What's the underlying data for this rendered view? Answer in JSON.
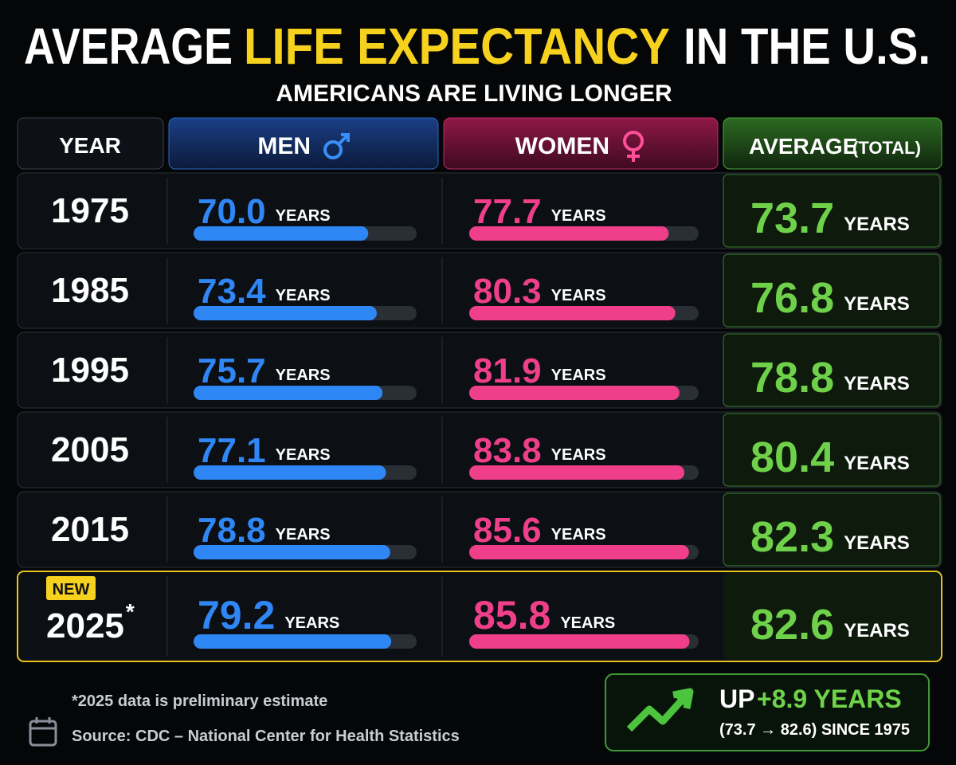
{
  "header": {
    "title_start": "AVERAGE",
    "title_highlight": "LIFE EXPECTANCY",
    "title_end": "IN THE U.S.",
    "subtitle": "AMERICANS ARE LIVING LONGER"
  },
  "table": {
    "columns": {
      "year": "YEAR",
      "men": "MEN",
      "women": "WOMEN",
      "average": "AVERAGE",
      "average_note": "(TOTAL)"
    },
    "unit": "YEARS",
    "years": [
      "1975",
      "1985",
      "1995",
      "2005",
      "2015",
      "2025"
    ],
    "latest_badge": "NEW",
    "latest_mark": "*",
    "men": {
      "values": [
        70.0,
        73.4,
        75.7,
        77.1,
        78.8,
        79.2
      ],
      "value_labels": [
        "70.0",
        "73.4",
        "75.7",
        "77.1",
        "78.8",
        "79.2"
      ]
    },
    "women": {
      "values": [
        77.7,
        80.3,
        81.9,
        83.8,
        85.6,
        85.8
      ]
    },
    "average": {
      "values": [
        73.7,
        76.8,
        78.8,
        80.4,
        82.3,
        82.6
      ]
    }
  },
  "footer": {
    "note": "*2025 data is preliminary estimate",
    "source": "Source: CDC – National Center for Health Statistics",
    "summary_up": "UP",
    "summary_change": "+8.9 YEARS",
    "summary_detail": "(73.7 → 82.6) SINCE 1975"
  }
}
